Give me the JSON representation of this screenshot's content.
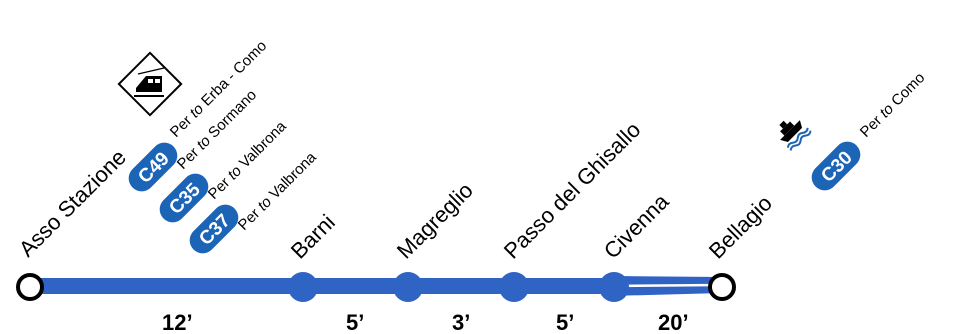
{
  "colors": {
    "line": "#2f63c4",
    "badge": "#1b64b6",
    "stop": "#2f63c4",
    "terminal_fill": "#ffffff",
    "text": "#000000"
  },
  "stops": [
    {
      "name": "Asso Stazione",
      "type": "terminal"
    },
    {
      "name": "Barni",
      "type": "intermediate"
    },
    {
      "name": "Magreglio",
      "type": "intermediate"
    },
    {
      "name": "Passo del Ghisallo",
      "type": "intermediate"
    },
    {
      "name": "Civenna",
      "type": "intermediate"
    },
    {
      "name": "Bellagio",
      "type": "terminal"
    }
  ],
  "travel_times": [
    "12’",
    "5’",
    "3’",
    "5’",
    "20’"
  ],
  "connections": {
    "asso": [
      {
        "kind": "rail",
        "icon": "train-icon",
        "per": "Per ",
        "to": "to",
        "dest": " Erba - Como"
      },
      {
        "kind": "bus",
        "badge": "C49",
        "per": "Per ",
        "to": "to",
        "dest": " Sormano"
      },
      {
        "kind": "bus",
        "badge": "C35",
        "per": "Per ",
        "to": "to",
        "dest": " Valbrona"
      },
      {
        "kind": "bus",
        "badge": "C37",
        "per": "",
        "to": "",
        "dest": ""
      }
    ],
    "bellagio": [
      {
        "kind": "ferry",
        "icon": "ferry-icon"
      },
      {
        "kind": "bus",
        "badge": "C30",
        "per": "Per ",
        "to": "to",
        "dest": " Como"
      }
    ]
  },
  "asso_c37": {
    "per": "Per ",
    "to": "to",
    "dest": " Valbrona"
  }
}
